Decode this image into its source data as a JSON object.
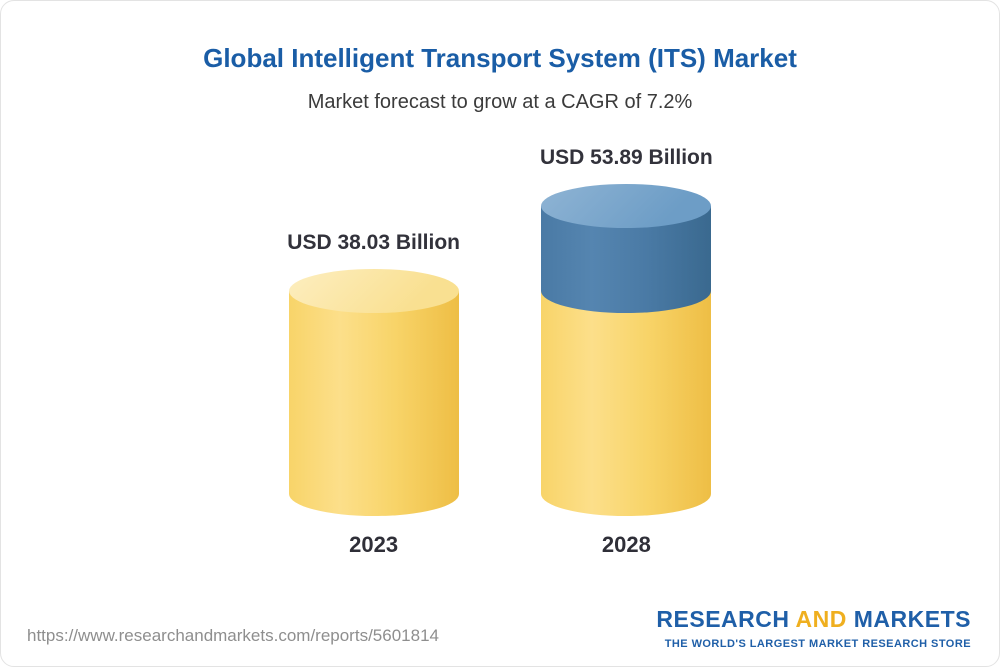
{
  "chart_data": {
    "type": "bar",
    "style": "3d-cylinder",
    "title": "Global Intelligent Transport System (ITS) Market",
    "subtitle": "Market forecast to grow at a CAGR of 7.2%",
    "cagr": "7.2%",
    "unit": "USD Billion",
    "categories": [
      "2023",
      "2028"
    ],
    "values": [
      38.03,
      53.89
    ],
    "ylim": [
      0,
      60
    ],
    "grid": false,
    "legend": false,
    "bars": [
      {
        "category": "2023",
        "value": 38.03,
        "label": "USD 38.03 Billion",
        "segments": [
          {
            "color_key": "yellow",
            "value": 38.03
          }
        ]
      },
      {
        "category": "2028",
        "value": 53.89,
        "label": "USD 53.89 Billion",
        "segments": [
          {
            "color_key": "blue",
            "value": 15.86
          },
          {
            "color_key": "yellow",
            "value": 38.03
          }
        ]
      }
    ]
  },
  "colors": {
    "title_blue": "#1a5da6",
    "logo_blue": "#1f5fa8",
    "logo_gold": "#efaf1f",
    "yellow_top": "#f9e091",
    "yellow_top_light": "#fdeec0",
    "yellow_body": "#f8d469",
    "yellow_body_light": "#fcdf8a",
    "yellow_body_dark": "#eebe45",
    "blue_top": "#6d9dc6",
    "blue_top_light": "#8fb4d4",
    "blue_body": "#4a7aa5",
    "blue_body_light": "#5585b0",
    "blue_body_dark": "#3a698f"
  },
  "footer": {
    "url": "https://www.researchandmarkets.com/reports/5601814",
    "logo": {
      "word1": "RESEARCH",
      "word2": "AND",
      "word3": "MARKETS",
      "tagline": "THE WORLD'S LARGEST MARKET RESEARCH STORE"
    }
  }
}
